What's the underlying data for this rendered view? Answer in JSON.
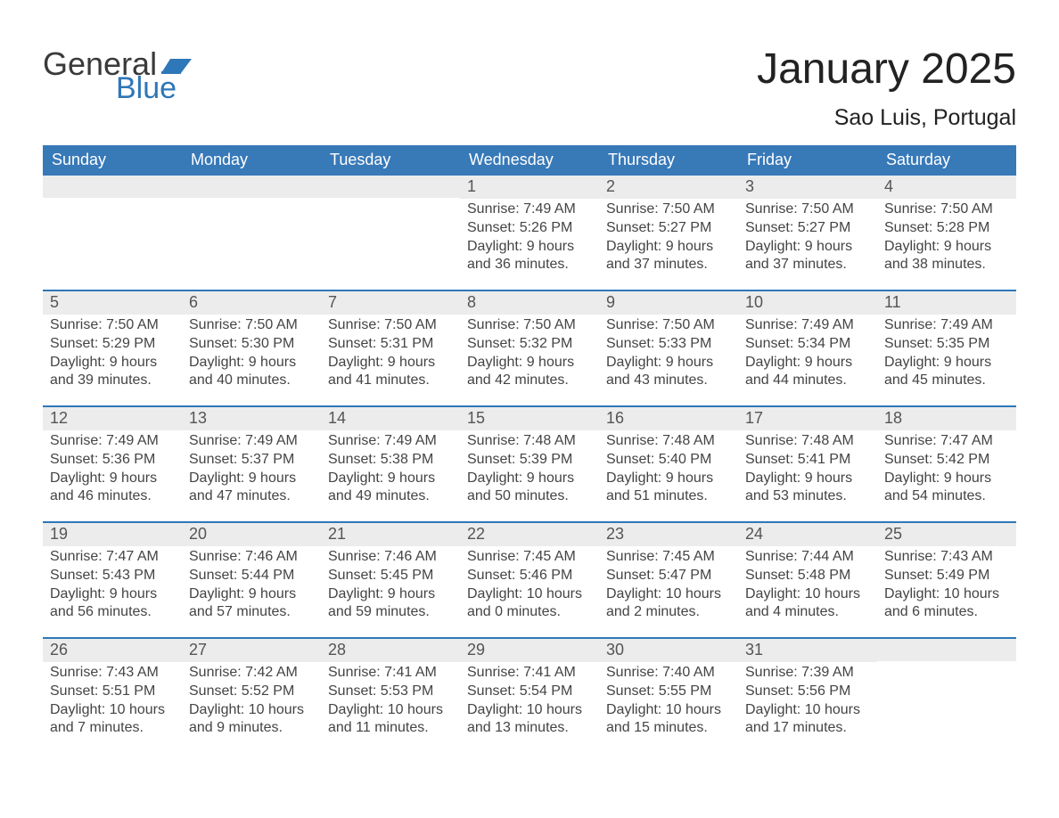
{
  "colors": {
    "header_blue": "#3879b8",
    "accent_blue": "#2e77b8",
    "logo_blue": "#2e77b8",
    "daynum_bg": "#ececec",
    "text_dark": "#333333",
    "text_med": "#444444",
    "background": "#ffffff"
  },
  "typography": {
    "family": "Arial, Helvetica, sans-serif",
    "month_title_pt": 48,
    "location_pt": 25,
    "weekday_pt": 18,
    "daynum_pt": 18,
    "body_pt": 16,
    "logo_general_pt": 36,
    "logo_blue_pt": 34
  },
  "logo": {
    "word1": "General",
    "word2": "Blue",
    "flag_color": "#2e77b8"
  },
  "title": {
    "month": "January 2025",
    "location": "Sao Luis, Portugal"
  },
  "calendar": {
    "type": "table",
    "columns": 7,
    "weekdays": [
      "Sunday",
      "Monday",
      "Tuesday",
      "Wednesday",
      "Thursday",
      "Friday",
      "Saturday"
    ],
    "weeks": [
      [
        {
          "day": null
        },
        {
          "day": null
        },
        {
          "day": null
        },
        {
          "day": 1,
          "sunrise": "7:49 AM",
          "sunset": "5:26 PM",
          "daylight_h": 9,
          "daylight_m": 36
        },
        {
          "day": 2,
          "sunrise": "7:50 AM",
          "sunset": "5:27 PM",
          "daylight_h": 9,
          "daylight_m": 37
        },
        {
          "day": 3,
          "sunrise": "7:50 AM",
          "sunset": "5:27 PM",
          "daylight_h": 9,
          "daylight_m": 37
        },
        {
          "day": 4,
          "sunrise": "7:50 AM",
          "sunset": "5:28 PM",
          "daylight_h": 9,
          "daylight_m": 38
        }
      ],
      [
        {
          "day": 5,
          "sunrise": "7:50 AM",
          "sunset": "5:29 PM",
          "daylight_h": 9,
          "daylight_m": 39
        },
        {
          "day": 6,
          "sunrise": "7:50 AM",
          "sunset": "5:30 PM",
          "daylight_h": 9,
          "daylight_m": 40
        },
        {
          "day": 7,
          "sunrise": "7:50 AM",
          "sunset": "5:31 PM",
          "daylight_h": 9,
          "daylight_m": 41
        },
        {
          "day": 8,
          "sunrise": "7:50 AM",
          "sunset": "5:32 PM",
          "daylight_h": 9,
          "daylight_m": 42
        },
        {
          "day": 9,
          "sunrise": "7:50 AM",
          "sunset": "5:33 PM",
          "daylight_h": 9,
          "daylight_m": 43
        },
        {
          "day": 10,
          "sunrise": "7:49 AM",
          "sunset": "5:34 PM",
          "daylight_h": 9,
          "daylight_m": 44
        },
        {
          "day": 11,
          "sunrise": "7:49 AM",
          "sunset": "5:35 PM",
          "daylight_h": 9,
          "daylight_m": 45
        }
      ],
      [
        {
          "day": 12,
          "sunrise": "7:49 AM",
          "sunset": "5:36 PM",
          "daylight_h": 9,
          "daylight_m": 46
        },
        {
          "day": 13,
          "sunrise": "7:49 AM",
          "sunset": "5:37 PM",
          "daylight_h": 9,
          "daylight_m": 47
        },
        {
          "day": 14,
          "sunrise": "7:49 AM",
          "sunset": "5:38 PM",
          "daylight_h": 9,
          "daylight_m": 49
        },
        {
          "day": 15,
          "sunrise": "7:48 AM",
          "sunset": "5:39 PM",
          "daylight_h": 9,
          "daylight_m": 50
        },
        {
          "day": 16,
          "sunrise": "7:48 AM",
          "sunset": "5:40 PM",
          "daylight_h": 9,
          "daylight_m": 51
        },
        {
          "day": 17,
          "sunrise": "7:48 AM",
          "sunset": "5:41 PM",
          "daylight_h": 9,
          "daylight_m": 53
        },
        {
          "day": 18,
          "sunrise": "7:47 AM",
          "sunset": "5:42 PM",
          "daylight_h": 9,
          "daylight_m": 54
        }
      ],
      [
        {
          "day": 19,
          "sunrise": "7:47 AM",
          "sunset": "5:43 PM",
          "daylight_h": 9,
          "daylight_m": 56
        },
        {
          "day": 20,
          "sunrise": "7:46 AM",
          "sunset": "5:44 PM",
          "daylight_h": 9,
          "daylight_m": 57
        },
        {
          "day": 21,
          "sunrise": "7:46 AM",
          "sunset": "5:45 PM",
          "daylight_h": 9,
          "daylight_m": 59
        },
        {
          "day": 22,
          "sunrise": "7:45 AM",
          "sunset": "5:46 PM",
          "daylight_h": 10,
          "daylight_m": 0
        },
        {
          "day": 23,
          "sunrise": "7:45 AM",
          "sunset": "5:47 PM",
          "daylight_h": 10,
          "daylight_m": 2
        },
        {
          "day": 24,
          "sunrise": "7:44 AM",
          "sunset": "5:48 PM",
          "daylight_h": 10,
          "daylight_m": 4
        },
        {
          "day": 25,
          "sunrise": "7:43 AM",
          "sunset": "5:49 PM",
          "daylight_h": 10,
          "daylight_m": 6
        }
      ],
      [
        {
          "day": 26,
          "sunrise": "7:43 AM",
          "sunset": "5:51 PM",
          "daylight_h": 10,
          "daylight_m": 7
        },
        {
          "day": 27,
          "sunrise": "7:42 AM",
          "sunset": "5:52 PM",
          "daylight_h": 10,
          "daylight_m": 9
        },
        {
          "day": 28,
          "sunrise": "7:41 AM",
          "sunset": "5:53 PM",
          "daylight_h": 10,
          "daylight_m": 11
        },
        {
          "day": 29,
          "sunrise": "7:41 AM",
          "sunset": "5:54 PM",
          "daylight_h": 10,
          "daylight_m": 13
        },
        {
          "day": 30,
          "sunrise": "7:40 AM",
          "sunset": "5:55 PM",
          "daylight_h": 10,
          "daylight_m": 15
        },
        {
          "day": 31,
          "sunrise": "7:39 AM",
          "sunset": "5:56 PM",
          "daylight_h": 10,
          "daylight_m": 17
        },
        {
          "day": null
        }
      ]
    ],
    "labels": {
      "sunrise_prefix": "Sunrise: ",
      "sunset_prefix": "Sunset: ",
      "daylight_prefix": "Daylight: ",
      "hours_word": " hours",
      "minutes_suffix": " minutes.",
      "and_word": "and "
    }
  }
}
